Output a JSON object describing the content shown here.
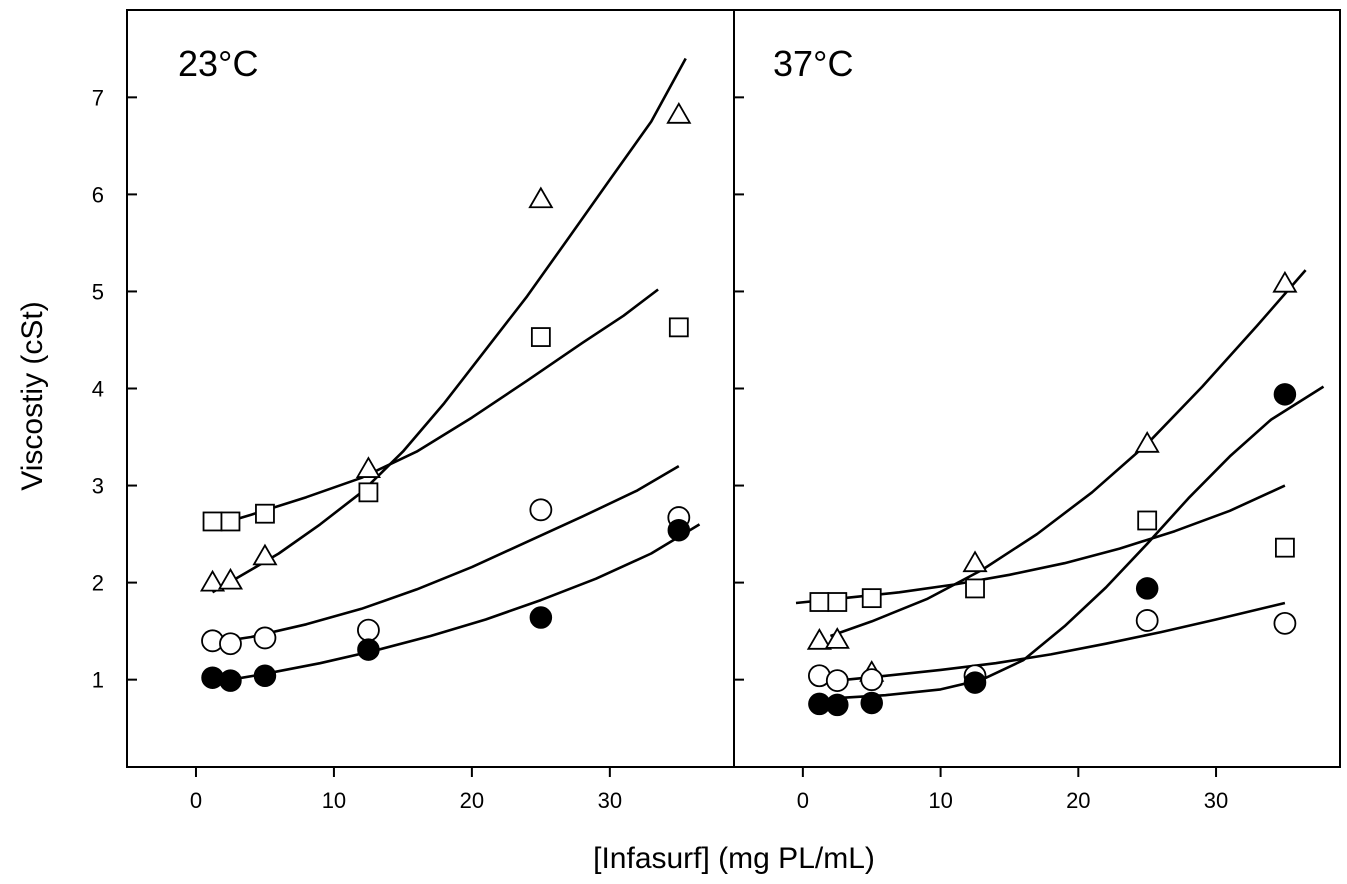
{
  "chart_data": {
    "type": "scatter",
    "xlabel": "[Infasurf] (mg PL/mL)",
    "ylabel": "Viscostiy (cSt)",
    "xlim": [
      -5,
      39
    ],
    "ylim": [
      0.1,
      7.9
    ],
    "xticks": [
      "0",
      "10",
      "20",
      "30"
    ],
    "yticks": [
      "1",
      "2",
      "3",
      "4",
      "5",
      "6",
      "7"
    ],
    "grid": false,
    "legend": "none",
    "panels": [
      {
        "title": "23°C",
        "series": [
          {
            "marker": "triangle-open",
            "points": [
              [
                1.2,
                2.0
              ],
              [
                2.5,
                2.02
              ],
              [
                5,
                2.27
              ],
              [
                12.5,
                3.17
              ],
              [
                25,
                5.95
              ],
              [
                35,
                6.82
              ]
            ],
            "fit": [
              [
                1.2,
                1.9
              ],
              [
                3,
                2.05
              ],
              [
                6,
                2.3
              ],
              [
                9,
                2.6
              ],
              [
                12,
                2.93
              ],
              [
                15,
                3.35
              ],
              [
                18,
                3.85
              ],
              [
                21,
                4.4
              ],
              [
                24,
                4.95
              ],
              [
                27,
                5.55
              ],
              [
                30,
                6.15
              ],
              [
                33,
                6.75
              ],
              [
                35.5,
                7.4
              ]
            ]
          },
          {
            "marker": "square-open",
            "points": [
              [
                1.2,
                2.63
              ],
              [
                2.5,
                2.63
              ],
              [
                5,
                2.71
              ],
              [
                12.5,
                2.93
              ],
              [
                25,
                4.53
              ],
              [
                35,
                4.63
              ]
            ],
            "fit": [
              [
                1.2,
                2.58
              ],
              [
                4,
                2.7
              ],
              [
                8,
                2.88
              ],
              [
                12,
                3.08
              ],
              [
                16,
                3.35
              ],
              [
                20,
                3.7
              ],
              [
                24,
                4.08
              ],
              [
                28,
                4.47
              ],
              [
                31,
                4.75
              ],
              [
                33.5,
                5.02
              ]
            ]
          },
          {
            "marker": "circle-open",
            "points": [
              [
                1.2,
                1.4
              ],
              [
                2.5,
                1.37
              ],
              [
                5,
                1.43
              ],
              [
                12.5,
                1.51
              ],
              [
                25,
                2.75
              ],
              [
                35,
                2.67
              ]
            ],
            "fit": [
              [
                1.2,
                1.38
              ],
              [
                4,
                1.44
              ],
              [
                8,
                1.57
              ],
              [
                12,
                1.73
              ],
              [
                16,
                1.93
              ],
              [
                20,
                2.16
              ],
              [
                24,
                2.42
              ],
              [
                28,
                2.68
              ],
              [
                32,
                2.95
              ],
              [
                35,
                3.2
              ]
            ]
          },
          {
            "marker": "circle-filled",
            "points": [
              [
                1.2,
                1.02
              ],
              [
                2.5,
                0.99
              ],
              [
                5,
                1.04
              ],
              [
                12.5,
                1.31
              ],
              [
                25,
                1.64
              ],
              [
                35,
                2.54
              ]
            ],
            "fit": [
              [
                2.5,
                1.0
              ],
              [
                5,
                1.06
              ],
              [
                9,
                1.17
              ],
              [
                13,
                1.3
              ],
              [
                17,
                1.45
              ],
              [
                21,
                1.62
              ],
              [
                25,
                1.82
              ],
              [
                29,
                2.04
              ],
              [
                33,
                2.3
              ],
              [
                36.5,
                2.6
              ]
            ]
          }
        ]
      },
      {
        "title": "37°C",
        "series": [
          {
            "marker": "triangle-open",
            "points": [
              [
                1.2,
                1.4
              ],
              [
                2.5,
                1.41
              ],
              [
                5,
                1.07
              ],
              [
                12.5,
                2.2
              ],
              [
                25,
                3.43
              ],
              [
                35,
                5.08
              ]
            ],
            "fit": [
              [
                2,
                1.45
              ],
              [
                5,
                1.6
              ],
              [
                9,
                1.83
              ],
              [
                13,
                2.13
              ],
              [
                17,
                2.5
              ],
              [
                21,
                2.93
              ],
              [
                25,
                3.43
              ],
              [
                29,
                4.02
              ],
              [
                33,
                4.65
              ],
              [
                36.5,
                5.22
              ]
            ]
          },
          {
            "marker": "square-open",
            "points": [
              [
                1.2,
                1.8
              ],
              [
                2.5,
                1.8
              ],
              [
                5,
                1.84
              ],
              [
                12.5,
                1.94
              ],
              [
                25,
                2.64
              ],
              [
                35,
                2.36
              ]
            ],
            "fit": [
              [
                -0.5,
                1.79
              ],
              [
                3,
                1.84
              ],
              [
                7,
                1.9
              ],
              [
                11,
                1.98
              ],
              [
                15,
                2.08
              ],
              [
                19,
                2.2
              ],
              [
                23,
                2.35
              ],
              [
                27,
                2.53
              ],
              [
                31,
                2.74
              ],
              [
                35,
                3.0
              ]
            ]
          },
          {
            "marker": "circle-open",
            "points": [
              [
                1.2,
                1.04
              ],
              [
                2.5,
                0.99
              ],
              [
                5,
                1.0
              ],
              [
                12.5,
                1.04
              ],
              [
                25,
                1.61
              ],
              [
                35,
                1.58
              ]
            ],
            "fit": [
              [
                2.5,
                0.99
              ],
              [
                6,
                1.04
              ],
              [
                10,
                1.1
              ],
              [
                14,
                1.17
              ],
              [
                18,
                1.26
              ],
              [
                22,
                1.37
              ],
              [
                26,
                1.49
              ],
              [
                30,
                1.62
              ],
              [
                35,
                1.79
              ]
            ]
          },
          {
            "marker": "circle-filled",
            "points": [
              [
                1.2,
                0.75
              ],
              [
                2.5,
                0.74
              ],
              [
                5,
                0.76
              ],
              [
                12.5,
                0.97
              ],
              [
                25,
                1.94
              ],
              [
                35,
                3.94
              ]
            ],
            "fit": [
              [
                2.5,
                0.81
              ],
              [
                6,
                0.84
              ],
              [
                10,
                0.9
              ],
              [
                13,
                1.0
              ],
              [
                16,
                1.2
              ],
              [
                19,
                1.55
              ],
              [
                22,
                1.95
              ],
              [
                25,
                2.4
              ],
              [
                28,
                2.87
              ],
              [
                31,
                3.3
              ],
              [
                34,
                3.68
              ],
              [
                37.8,
                4.02
              ]
            ]
          }
        ]
      }
    ]
  }
}
